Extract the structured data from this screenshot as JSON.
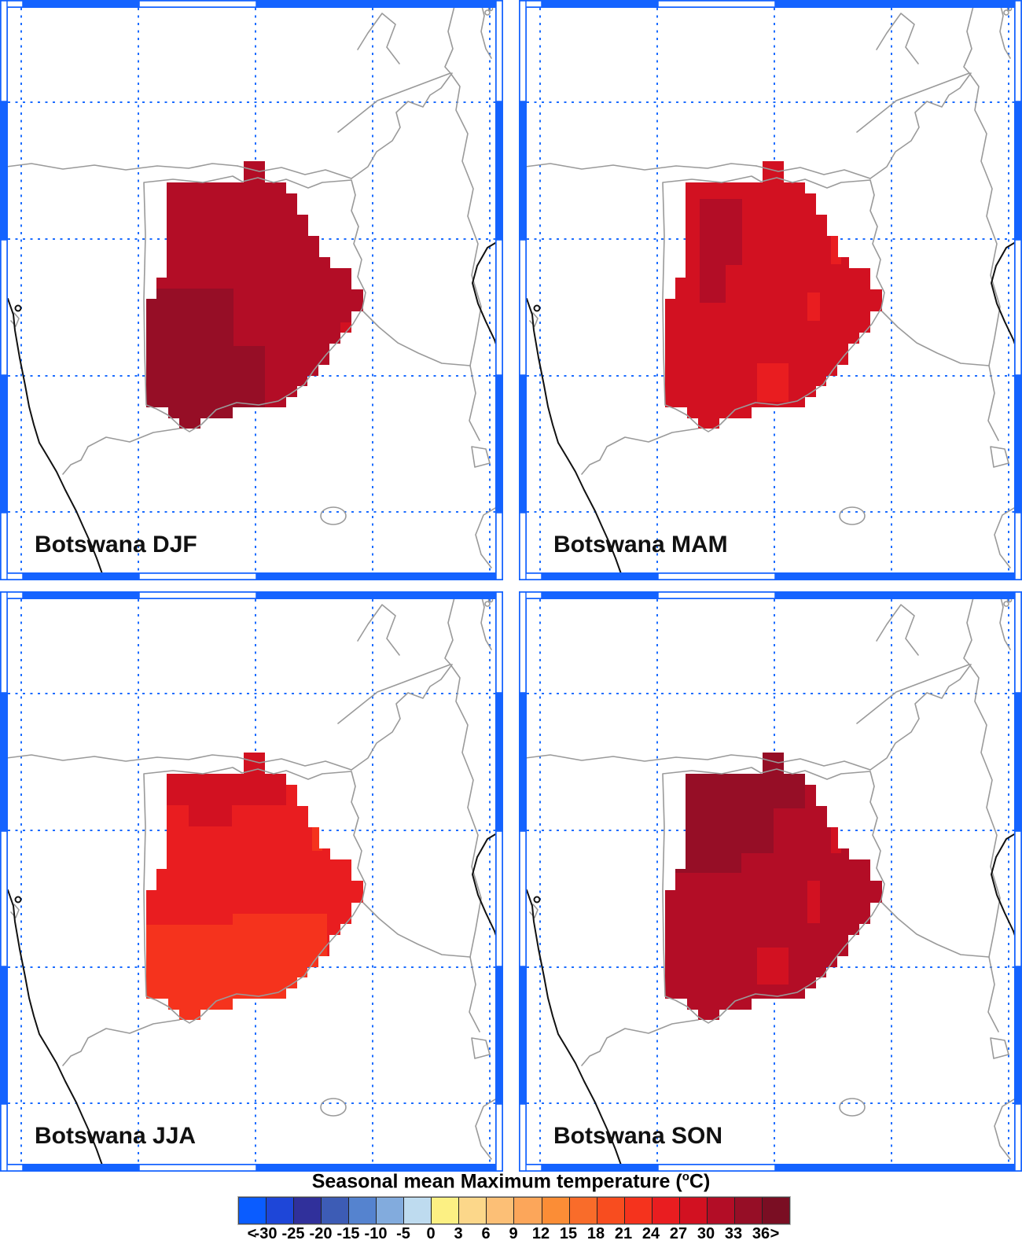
{
  "style": {
    "frame_blue": "#1463ff",
    "graticule_blue": "#1b6cff",
    "country_border_gray": "#9a9a9a",
    "coastline_black": "#111111",
    "label_color": "#111111",
    "background": "#ffffff"
  },
  "colorbar_display": {
    "title_main": "Seasonal mean Maximum temperature (",
    "title_sup": "o",
    "title_end": "C)"
  },
  "chart_data": {
    "type": "heatmap",
    "title": "Seasonal mean Maximum temperature (°C)",
    "region": "Botswana",
    "layout": "2x2 seasonal map panels with shared horizontal colorbar",
    "colorbar": {
      "title": "Seasonal mean Maximum temperature (°C)",
      "tick_labels": [
        "<",
        "-30",
        "-25",
        "-20",
        "-15",
        "-10",
        "-5",
        "0",
        "3",
        "6",
        "9",
        "12",
        "15",
        "18",
        "21",
        "24",
        "27",
        "30",
        "33",
        "36",
        ">"
      ],
      "bin_edges_c": [
        -30,
        -25,
        -20,
        -15,
        -10,
        -5,
        0,
        3,
        6,
        9,
        12,
        15,
        18,
        21,
        24,
        27,
        30,
        33,
        36
      ],
      "open_ended": "first bin < -30, last bin > 36",
      "cell_colors": [
        "#0a5cff",
        "#1e46d8",
        "#30309b",
        "#3d5cb5",
        "#5583cf",
        "#82abdd",
        "#bedbef",
        "#fcf083",
        "#fcd78a",
        "#fcbf76",
        "#fca65a",
        "#fb8d36",
        "#f96c2a",
        "#f84d1f",
        "#f5331d",
        "#e91d20",
        "#d21121",
        "#b30d26",
        "#960e26",
        "#7a0e23"
      ]
    },
    "panels": [
      {
        "label": "Botswana DJF",
        "season": "DJF",
        "dominant_range_c": [
          30,
          33
        ],
        "coolest_range_c": [
          27,
          30
        ],
        "warmest_range_c": [
          33,
          36
        ],
        "base_color_index": 17,
        "patches": [
          [
            186,
            367,
            111,
            100,
            18
          ],
          [
            186,
            440,
            151,
            105,
            18
          ],
          [
            406,
            300,
            14,
            27,
            16
          ],
          [
            433,
            410,
            14,
            14,
            16
          ]
        ]
      },
      {
        "label": "Botswana MAM",
        "season": "MAM",
        "dominant_range_c": [
          27,
          30
        ],
        "coolest_range_c": [
          24,
          27
        ],
        "warmest_range_c": [
          30,
          33
        ],
        "base_color_index": 16,
        "patches": [
          [
            230,
            253,
            54,
            84,
            17
          ],
          [
            230,
            337,
            33,
            48,
            17
          ],
          [
            397,
            300,
            13,
            36,
            15
          ],
          [
            367,
            372,
            16,
            36,
            15
          ],
          [
            303,
            462,
            40,
            49,
            15
          ]
        ]
      },
      {
        "label": "Botswana JJA",
        "season": "JJA",
        "dominant_range_c": [
          24,
          27
        ],
        "coolest_range_c": [
          21,
          24
        ],
        "warmest_range_c": [
          27,
          30
        ],
        "base_color_index": 15,
        "patches": [
          [
            212,
            232,
            152,
            40,
            16
          ],
          [
            310,
            205,
            27,
            27,
            16
          ],
          [
            240,
            272,
            55,
            27,
            16
          ],
          [
            183,
            424,
            170,
            121,
            14
          ],
          [
            296,
            410,
            120,
            108,
            14
          ],
          [
            397,
            300,
            13,
            30,
            14
          ]
        ]
      },
      {
        "label": "Botswana SON",
        "season": "SON",
        "dominant_range_c": [
          30,
          33
        ],
        "coolest_range_c": [
          27,
          30
        ],
        "warmest_range_c": [
          33,
          36
        ],
        "base_color_index": 17,
        "patches": [
          [
            212,
            232,
            152,
            44,
            18
          ],
          [
            212,
            276,
            112,
            57,
            18
          ],
          [
            199,
            333,
            84,
            25,
            18
          ],
          [
            310,
            205,
            27,
            27,
            18
          ],
          [
            367,
            368,
            16,
            54,
            16
          ],
          [
            303,
            453,
            40,
            47,
            16
          ],
          [
            397,
            298,
            13,
            35,
            16
          ]
        ]
      }
    ]
  }
}
